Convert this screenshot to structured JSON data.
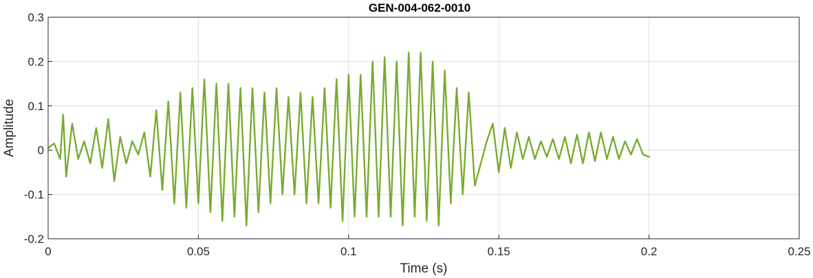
{
  "chart_data": {
    "type": "line",
    "title": "GEN-004-062-0010",
    "xlabel": "Time (s)",
    "ylabel": "Amplitude",
    "xlim": [
      0,
      0.25
    ],
    "ylim": [
      -0.2,
      0.3
    ],
    "xticks": [
      0,
      0.05,
      0.1,
      0.15,
      0.2,
      0.25
    ],
    "yticks": [
      -0.2,
      -0.1,
      0,
      0.1,
      0.2,
      0.3
    ],
    "xtick_labels": [
      "0",
      "0.05",
      "0.1",
      "0.15",
      "0.2",
      "0.25"
    ],
    "ytick_labels": [
      "-0.2",
      "-0.1",
      "0",
      "0.1",
      "0.2",
      "0.3"
    ],
    "grid": true,
    "series": [
      {
        "color": "#77ac30",
        "x": [
          0,
          0.002,
          0.004,
          0.005,
          0.006,
          0.008,
          0.01,
          0.012,
          0.014,
          0.016,
          0.018,
          0.02,
          0.022,
          0.024,
          0.026,
          0.028,
          0.03,
          0.032,
          0.034,
          0.036,
          0.038,
          0.04,
          0.042,
          0.044,
          0.046,
          0.048,
          0.05,
          0.052,
          0.054,
          0.056,
          0.058,
          0.06,
          0.062,
          0.064,
          0.066,
          0.068,
          0.07,
          0.072,
          0.074,
          0.076,
          0.078,
          0.08,
          0.082,
          0.084,
          0.086,
          0.088,
          0.09,
          0.092,
          0.094,
          0.096,
          0.098,
          0.1,
          0.102,
          0.104,
          0.106,
          0.108,
          0.11,
          0.112,
          0.114,
          0.116,
          0.118,
          0.12,
          0.122,
          0.124,
          0.126,
          0.128,
          0.13,
          0.132,
          0.134,
          0.136,
          0.138,
          0.14,
          0.142,
          0.144,
          0.146,
          0.148,
          0.15,
          0.152,
          0.154,
          0.156,
          0.158,
          0.16,
          0.162,
          0.164,
          0.166,
          0.168,
          0.17,
          0.172,
          0.174,
          0.176,
          0.178,
          0.18,
          0.182,
          0.184,
          0.186,
          0.188,
          0.19,
          0.192,
          0.194,
          0.196,
          0.198,
          0.2
        ],
        "y": [
          0.005,
          0.015,
          -0.02,
          0.08,
          -0.06,
          0.06,
          -0.02,
          0.02,
          -0.03,
          0.05,
          -0.04,
          0.07,
          -0.07,
          0.03,
          -0.03,
          0.02,
          -0.01,
          0.04,
          -0.06,
          0.09,
          -0.09,
          0.11,
          -0.12,
          0.13,
          -0.13,
          0.14,
          -0.12,
          0.16,
          -0.14,
          0.15,
          -0.16,
          0.15,
          -0.15,
          0.14,
          -0.17,
          0.14,
          -0.14,
          0.13,
          -0.12,
          0.14,
          -0.1,
          0.12,
          -0.1,
          0.13,
          -0.12,
          0.12,
          -0.12,
          0.14,
          -0.13,
          0.16,
          -0.16,
          0.17,
          -0.15,
          0.17,
          -0.15,
          0.2,
          -0.15,
          0.21,
          -0.15,
          0.2,
          -0.17,
          0.22,
          -0.15,
          0.22,
          -0.16,
          0.2,
          -0.17,
          0.18,
          -0.12,
          0.14,
          -0.1,
          0.13,
          -0.08,
          -0.03,
          0.02,
          0.06,
          -0.05,
          0.05,
          -0.04,
          0.04,
          -0.02,
          0.03,
          -0.02,
          0.02,
          -0.015,
          0.025,
          -0.02,
          0.03,
          -0.03,
          0.035,
          -0.03,
          0.04,
          -0.025,
          0.04,
          -0.02,
          0.03,
          -0.02,
          0.02,
          -0.01,
          0.025,
          -0.01,
          -0.015
        ]
      }
    ]
  }
}
